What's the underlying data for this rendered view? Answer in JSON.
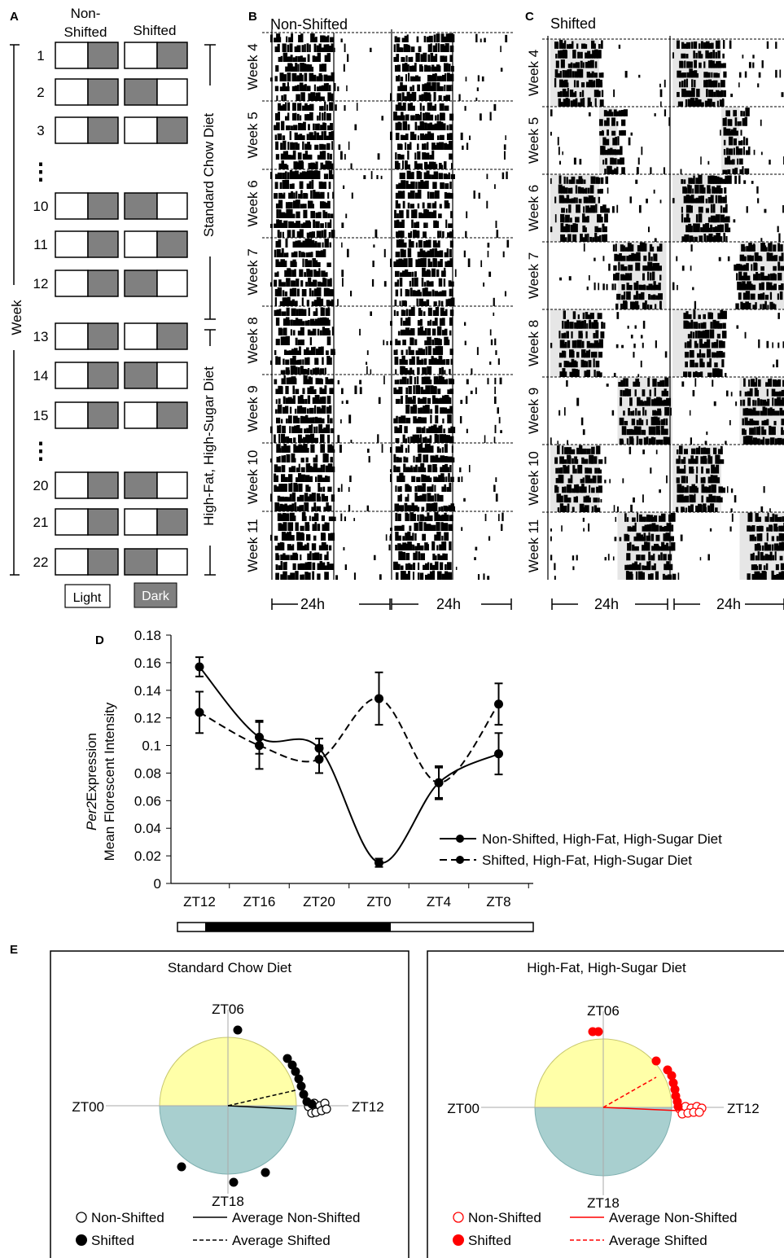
{
  "panels": {
    "A": {
      "letter": "A",
      "col_non_shifted": [
        "Non-",
        "Shifted"
      ],
      "col_shifted": "Shifted",
      "week_axis_label": "Week",
      "diet_chow": "Standard Chow Diet",
      "diet_hfhs": "High-Fat, High-Sugar Diet",
      "legend_light": "Light",
      "legend_dark": "Dark",
      "ellipsis": "⋮",
      "colors": {
        "dark": "#808080",
        "light": "#ffffff"
      },
      "rows": [
        {
          "week": "1",
          "shifted_dark": "right"
        },
        {
          "week": "2",
          "shifted_dark": "left"
        },
        {
          "week": "3",
          "shifted_dark": "right"
        },
        {
          "week": "ellipsis",
          "shifted_dark": null
        },
        {
          "week": "10",
          "shifted_dark": "left"
        },
        {
          "week": "11",
          "shifted_dark": "right"
        },
        {
          "week": "12",
          "shifted_dark": "left"
        },
        {
          "week": "13",
          "shifted_dark": "right"
        },
        {
          "week": "14",
          "shifted_dark": "left"
        },
        {
          "week": "15",
          "shifted_dark": "right"
        },
        {
          "week": "ellipsis",
          "shifted_dark": null
        },
        {
          "week": "20",
          "shifted_dark": "left"
        },
        {
          "week": "21",
          "shifted_dark": "right"
        },
        {
          "week": "22",
          "shifted_dark": "left"
        }
      ]
    },
    "B": {
      "letter": "B",
      "title": "Non-Shifted",
      "weeks": [
        "Week 4",
        "Week 5",
        "Week 6",
        "Week 7",
        "Week 8",
        "Week 9",
        "Week 10",
        "Week 11"
      ],
      "period": "24h"
    },
    "C": {
      "letter": "C",
      "title": "Shifted",
      "weeks": [
        "Week 4",
        "Week 5",
        "Week 6",
        "Week 7",
        "Week 8",
        "Week 9",
        "Week 10",
        "Week 11"
      ],
      "period": "24h",
      "shade_color": "#e6e6e6"
    },
    "D": {
      "letter": "D"
    },
    "E": {
      "letter": "E",
      "left": {
        "title": "Standard Chow Diet",
        "color": "#000000",
        "labels": {
          "top": "ZT06",
          "left": "ZT00",
          "right": "ZT12",
          "bottom": "ZT18"
        },
        "legend": {
          "open": "Non-Shifted",
          "filled": "Shifted",
          "solid": "Average Non-Shifted",
          "dashed": "Average Shifted"
        }
      },
      "right": {
        "title": "High-Fat, High-Sugar Diet",
        "color": "#ff0000",
        "labels": {
          "top": "ZT06",
          "left": "ZT00",
          "right": "ZT12",
          "bottom": "ZT18"
        },
        "legend": {
          "open": "Non-Shifted",
          "filled": "Shifted",
          "solid": "Average Non-Shifted",
          "dashed": "Average Shifted"
        }
      },
      "colors": {
        "light_half": "#ffffa8",
        "dark_half": "#a8cfcf"
      }
    }
  },
  "chart_data": {
    "type": "line",
    "ylabel_italic": "Per2",
    "ylabel": "Expression",
    "ylabel2": "Mean Florescent Intensity",
    "xlabel": "",
    "categories": [
      "ZT12",
      "ZT16",
      "ZT20",
      "ZT0",
      "ZT4",
      "ZT8"
    ],
    "ylim": [
      0,
      0.18
    ],
    "yticks": [
      "0",
      "0.02",
      "0.04",
      "0.06",
      "0.08",
      "0.1",
      "0.12",
      "0.14",
      "0.16",
      "0.18"
    ],
    "series": [
      {
        "name": "Non-Shifted, High-Fat, High-Sugar Diet",
        "style": "solid",
        "values": [
          0.157,
          0.106,
          0.098,
          0.015,
          0.073,
          0.094
        ],
        "errors": [
          0.007,
          0.012,
          0.007,
          0.003,
          0.011,
          0.015
        ]
      },
      {
        "name": "Shifted, High-Fat, High-Sugar Diet",
        "style": "dashed",
        "values": [
          0.124,
          0.1,
          0.09,
          0.134,
          0.073,
          0.13
        ],
        "errors": [
          0.015,
          0.017,
          0.01,
          0.019,
          0.012,
          0.015
        ]
      }
    ],
    "light_bar": [
      "light",
      "dark",
      "dark",
      "light",
      "light",
      "light"
    ]
  }
}
